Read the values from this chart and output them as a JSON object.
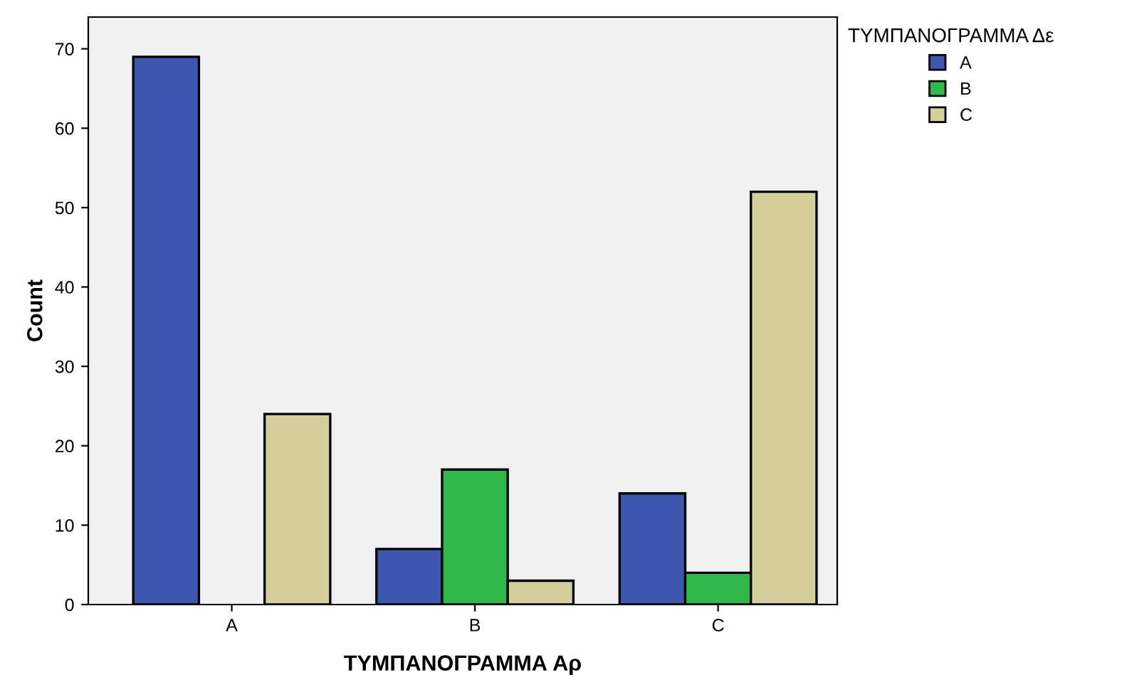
{
  "chart_data": {
    "type": "bar",
    "xlabel": "ΤΥΜΠΑΝΟΓΡΑΜΜΑ Αρ",
    "ylabel": "Count",
    "legend_title": "ΤΥΜΠΑΝΟΓΡΑΜΜΑ Δε",
    "categories": [
      "A",
      "B",
      "C"
    ],
    "series": [
      {
        "name": "A",
        "color": "#3d56b0",
        "values": [
          69,
          7,
          14
        ]
      },
      {
        "name": "B",
        "color": "#2fb94a",
        "values": [
          0,
          17,
          4
        ]
      },
      {
        "name": "C",
        "color": "#d4cf98",
        "values": [
          24,
          3,
          52
        ]
      }
    ],
    "ylim": [
      0,
      74
    ],
    "yticks": [
      0,
      10,
      20,
      30,
      40,
      50,
      60,
      70
    ],
    "grid": false,
    "legend": "top right"
  }
}
